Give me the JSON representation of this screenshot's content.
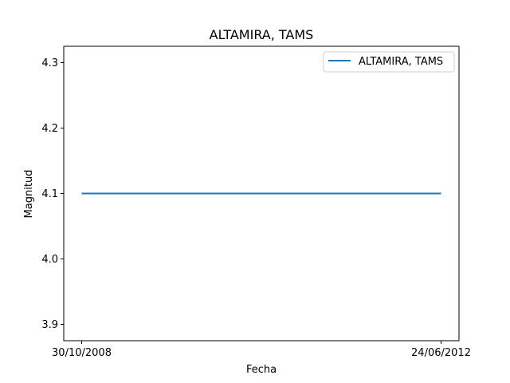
{
  "chart_data": {
    "type": "line",
    "title": "ALTAMIRA, TAMS",
    "xlabel": "Fecha",
    "ylabel": "Magnitud",
    "x": [
      "30/10/2008",
      "24/06/2012"
    ],
    "series": [
      {
        "name": "ALTAMIRA, TAMS",
        "values": [
          4.1,
          4.1
        ],
        "color": "#1f77b4"
      }
    ],
    "ylim": [
      3.875,
      4.325
    ],
    "yticks": [
      3.9,
      4.0,
      4.1,
      4.2,
      4.3
    ],
    "ytick_labels": [
      "3.9",
      "4.0",
      "4.1",
      "4.2",
      "4.3"
    ],
    "xtick_labels": [
      "30/10/2008",
      "24/06/2012"
    ],
    "grid": false,
    "legend": "upper right"
  }
}
